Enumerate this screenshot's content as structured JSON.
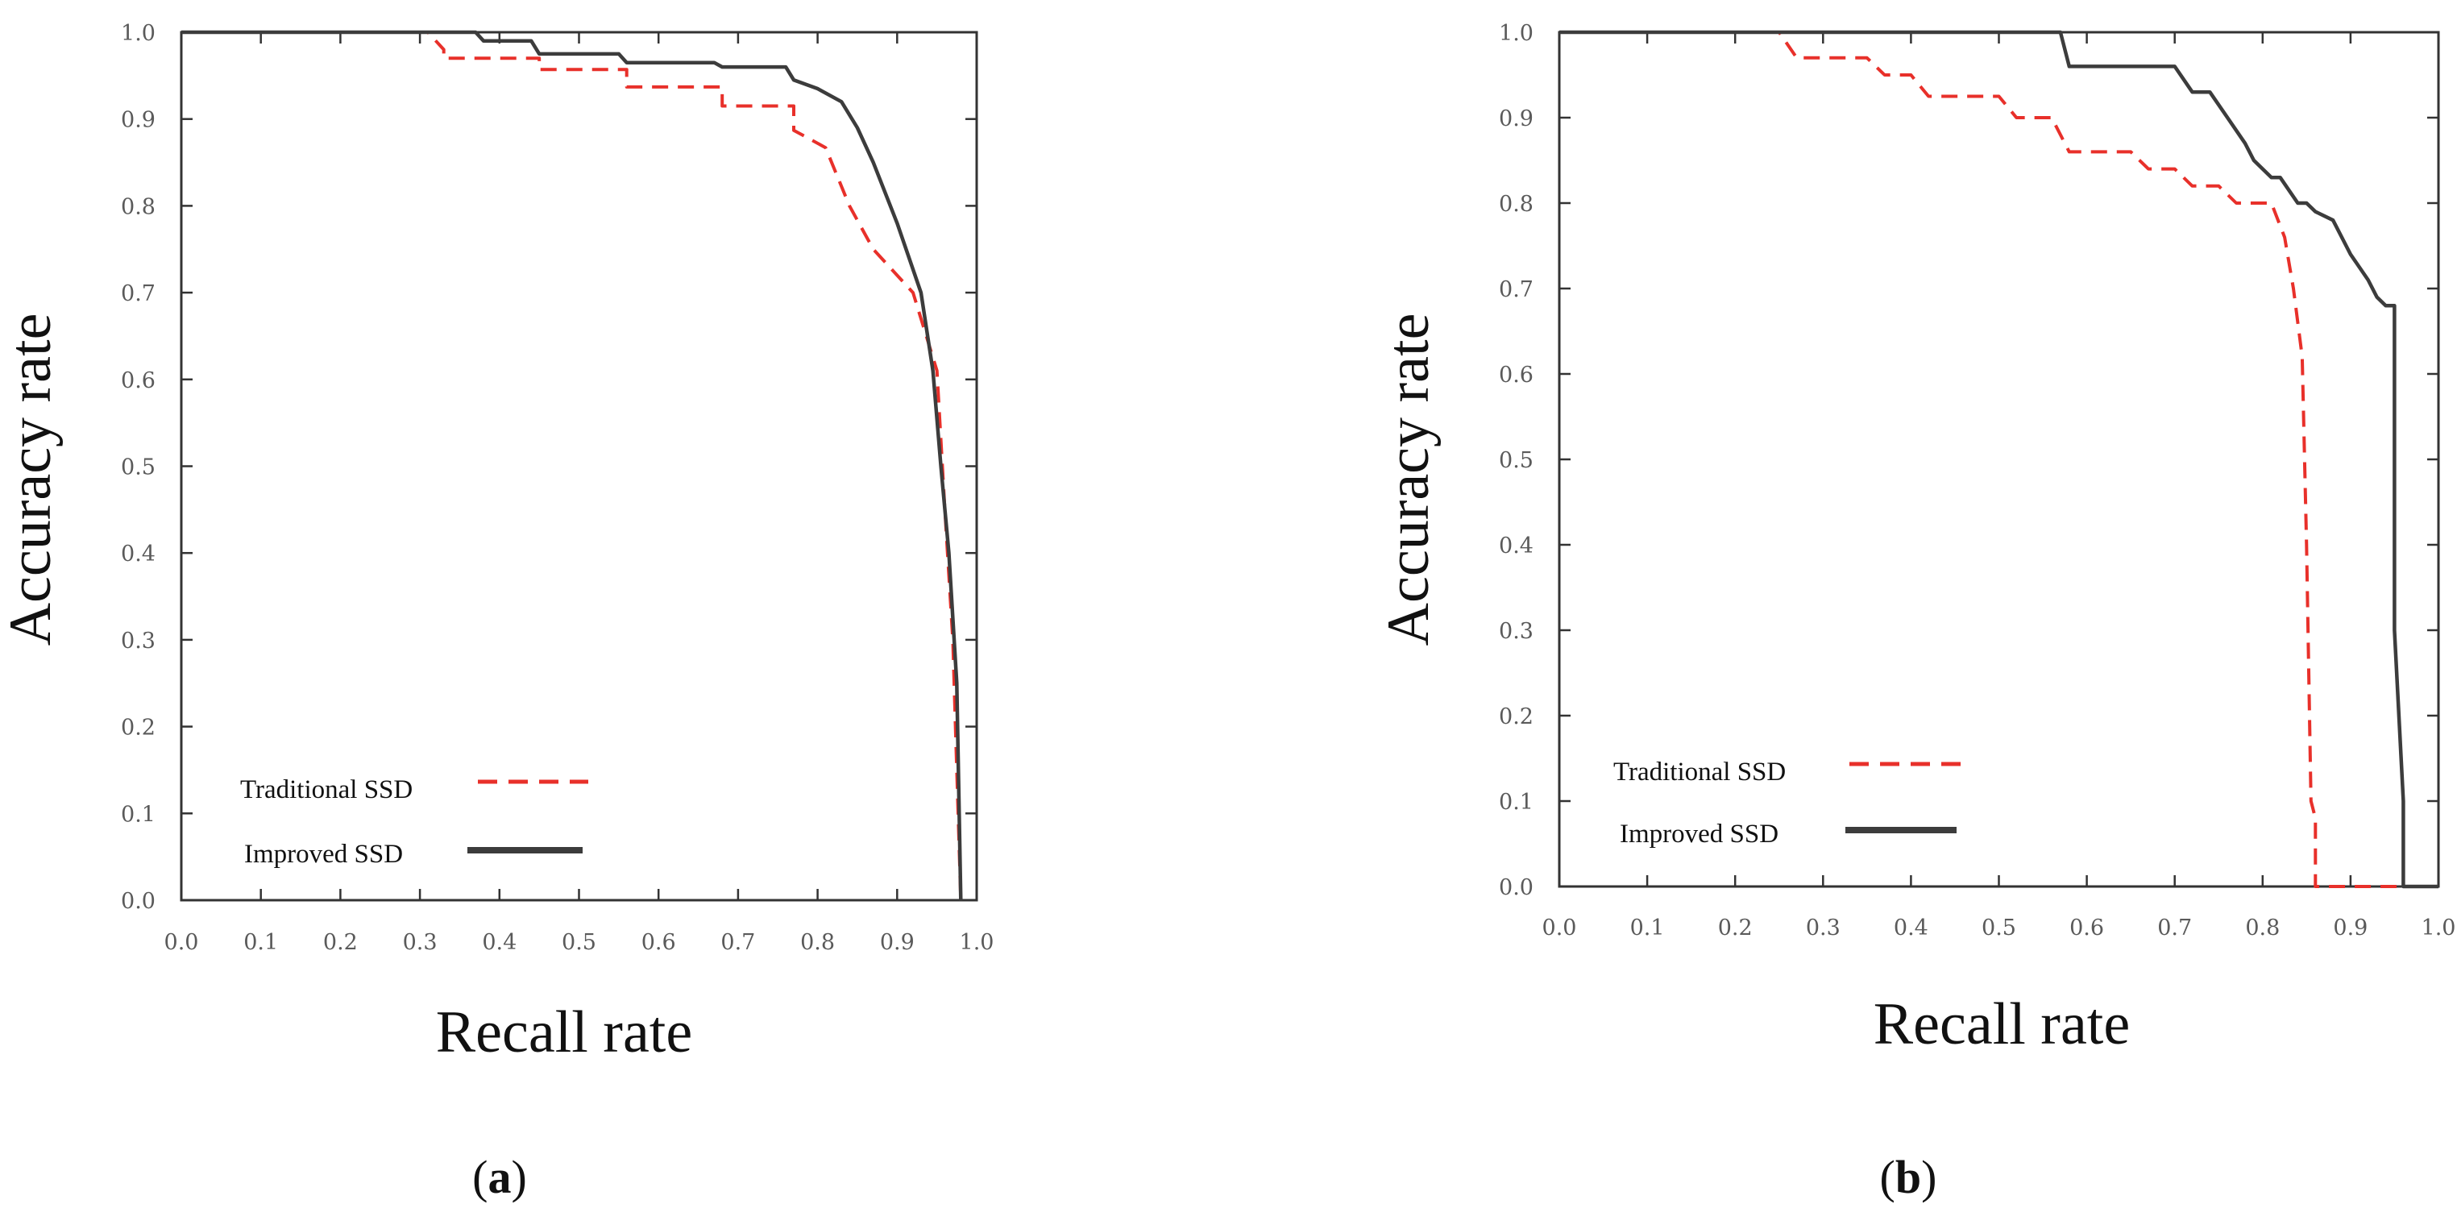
{
  "chart_data": [
    {
      "type": "line",
      "panel_label": "a",
      "xlabel": "Recall rate",
      "ylabel": "Accuracy rate",
      "xlim": [
        0.0,
        1.0
      ],
      "ylim": [
        0.0,
        1.0
      ],
      "x_ticks": [
        "0.0",
        "0.1",
        "0.2",
        "0.3",
        "0.4",
        "0.5",
        "0.6",
        "0.7",
        "0.8",
        "0.9",
        "1.0"
      ],
      "y_ticks": [
        "0.0",
        "0.1",
        "0.2",
        "0.3",
        "0.4",
        "0.5",
        "0.6",
        "0.7",
        "0.8",
        "0.9",
        "1.0"
      ],
      "grid": false,
      "legend_position": "bottom-left",
      "series": [
        {
          "name": "Traditional SSD",
          "color": "#e8302a",
          "dash": "dashed",
          "x": [
            0.0,
            0.31,
            0.33,
            0.33,
            0.45,
            0.45,
            0.56,
            0.56,
            0.68,
            0.68,
            0.77,
            0.77,
            0.81,
            0.84,
            0.87,
            0.92,
            0.95,
            0.96,
            0.97,
            0.975,
            0.98
          ],
          "y": [
            1.0,
            1.0,
            0.98,
            0.97,
            0.97,
            0.957,
            0.957,
            0.937,
            0.937,
            0.915,
            0.915,
            0.887,
            0.867,
            0.8,
            0.75,
            0.7,
            0.61,
            0.45,
            0.3,
            0.15,
            0.0
          ]
        },
        {
          "name": "Improved SSD",
          "color": "#3c3c3c",
          "dash": "solid",
          "x": [
            0.0,
            0.37,
            0.38,
            0.44,
            0.45,
            0.55,
            0.56,
            0.67,
            0.68,
            0.76,
            0.77,
            0.8,
            0.83,
            0.85,
            0.87,
            0.9,
            0.93,
            0.945,
            0.955,
            0.965,
            0.975,
            0.98
          ],
          "y": [
            1.0,
            1.0,
            0.99,
            0.99,
            0.975,
            0.975,
            0.965,
            0.965,
            0.96,
            0.96,
            0.945,
            0.935,
            0.92,
            0.89,
            0.85,
            0.78,
            0.7,
            0.61,
            0.5,
            0.4,
            0.25,
            0.0
          ]
        }
      ]
    },
    {
      "type": "line",
      "panel_label": "b",
      "xlabel": "Recall rate",
      "ylabel": "Accuracy rate",
      "xlim": [
        0.0,
        1.0
      ],
      "ylim": [
        0.0,
        1.0
      ],
      "x_ticks": [
        "0.0",
        "0.1",
        "0.2",
        "0.3",
        "0.4",
        "0.5",
        "0.6",
        "0.7",
        "0.8",
        "0.9",
        "1.0"
      ],
      "y_ticks": [
        "0.0",
        "0.1",
        "0.2",
        "0.3",
        "0.4",
        "0.5",
        "0.6",
        "0.7",
        "0.8",
        "0.9",
        "1.0"
      ],
      "grid": false,
      "legend_position": "bottom-left",
      "series": [
        {
          "name": "Traditional SSD",
          "color": "#e8302a",
          "dash": "dashed",
          "x": [
            0.0,
            0.25,
            0.27,
            0.35,
            0.37,
            0.4,
            0.42,
            0.5,
            0.52,
            0.56,
            0.58,
            0.65,
            0.67,
            0.7,
            0.72,
            0.75,
            0.77,
            0.81,
            0.825,
            0.835,
            0.845,
            0.85,
            0.855,
            0.86,
            0.86,
            0.9,
            0.95,
            1.0
          ],
          "y": [
            1.0,
            1.0,
            0.97,
            0.97,
            0.95,
            0.95,
            0.925,
            0.925,
            0.9,
            0.9,
            0.86,
            0.86,
            0.84,
            0.84,
            0.82,
            0.82,
            0.8,
            0.8,
            0.76,
            0.7,
            0.62,
            0.4,
            0.1,
            0.08,
            0.0,
            0.0,
            0.0,
            0.0
          ]
        },
        {
          "name": "Improved SSD",
          "color": "#3c3c3c",
          "dash": "solid",
          "x": [
            0.0,
            0.57,
            0.58,
            0.7,
            0.72,
            0.74,
            0.76,
            0.78,
            0.79,
            0.81,
            0.82,
            0.84,
            0.85,
            0.86,
            0.88,
            0.89,
            0.9,
            0.92,
            0.93,
            0.94,
            0.95,
            0.95,
            0.96,
            0.96,
            1.0
          ],
          "y": [
            1.0,
            1.0,
            0.96,
            0.96,
            0.93,
            0.93,
            0.9,
            0.87,
            0.85,
            0.83,
            0.83,
            0.8,
            0.8,
            0.79,
            0.78,
            0.76,
            0.74,
            0.71,
            0.69,
            0.68,
            0.68,
            0.3,
            0.1,
            0.0,
            0.0
          ]
        }
      ]
    }
  ]
}
